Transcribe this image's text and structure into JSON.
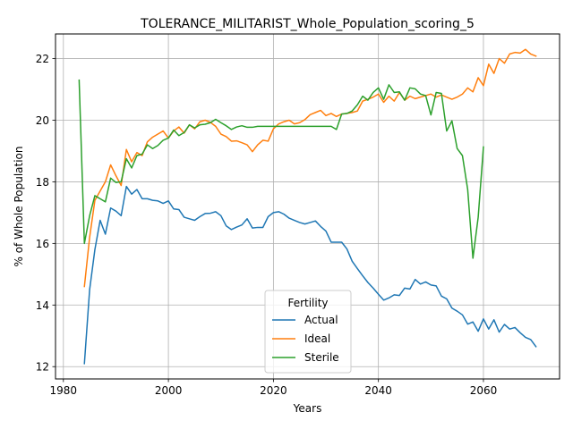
{
  "chart_data": {
    "type": "line",
    "title": "TOLERANCE_MILITARIST_Whole_Population_scoring_5",
    "xlabel": "Years",
    "ylabel": "% of Whole Population",
    "xlim": [
      1978.5,
      2074.5
    ],
    "ylim": [
      11.6,
      22.8
    ],
    "xticks": [
      1980,
      2000,
      2020,
      2040,
      2060
    ],
    "yticks": [
      12,
      14,
      16,
      18,
      20,
      22
    ],
    "grid": true,
    "legend": {
      "title": "Fertility",
      "position": "lower-center"
    },
    "series": [
      {
        "name": "Actual",
        "color": "#1f77b4",
        "x": [
          1984,
          1985,
          1986,
          1987,
          1988,
          1989,
          1990,
          1991,
          1992,
          1993,
          1994,
          1995,
          1996,
          1997,
          1998,
          1999,
          2000,
          2001,
          2002,
          2003,
          2004,
          2005,
          2006,
          2007,
          2008,
          2009,
          2010,
          2011,
          2012,
          2013,
          2014,
          2015,
          2016,
          2017,
          2018,
          2019,
          2020,
          2021,
          2022,
          2023,
          2024,
          2025,
          2026,
          2027,
          2028,
          2029,
          2030,
          2031,
          2032,
          2033,
          2034,
          2035,
          2036,
          2037,
          2038,
          2039,
          2040,
          2041,
          2042,
          2043,
          2044,
          2045,
          2046,
          2047,
          2048,
          2049,
          2050,
          2051,
          2052,
          2053,
          2054,
          2055,
          2056,
          2057,
          2058,
          2059,
          2060,
          2061,
          2062,
          2063,
          2064,
          2065,
          2066,
          2067,
          2068,
          2069,
          2070
        ],
        "values": [
          12.1,
          14.5,
          15.8,
          16.75,
          16.3,
          17.15,
          17.05,
          16.9,
          17.85,
          17.6,
          17.75,
          17.45,
          17.45,
          17.4,
          17.38,
          17.3,
          17.38,
          17.12,
          17.1,
          16.85,
          16.8,
          16.75,
          16.87,
          16.97,
          16.98,
          17.03,
          16.9,
          16.57,
          16.45,
          16.53,
          16.6,
          16.8,
          16.5,
          16.52,
          16.52,
          16.87,
          17.0,
          17.03,
          16.95,
          16.82,
          16.75,
          16.68,
          16.63,
          16.68,
          16.73,
          16.55,
          16.4,
          16.04,
          16.04,
          16.04,
          15.82,
          15.42,
          15.18,
          14.95,
          14.73,
          14.55,
          14.35,
          14.16,
          14.23,
          14.33,
          14.31,
          14.55,
          14.52,
          14.83,
          14.68,
          14.75,
          14.65,
          14.62,
          14.29,
          14.2,
          13.9,
          13.8,
          13.68,
          13.38,
          13.45,
          13.15,
          13.55,
          13.22,
          13.52,
          13.12,
          13.37,
          13.22,
          13.27,
          13.1,
          12.95,
          12.88,
          12.65
        ]
      },
      {
        "name": "Ideal",
        "color": "#ff7f0e",
        "x": [
          1984,
          1985,
          1986,
          1987,
          1988,
          1989,
          1990,
          1991,
          1992,
          1993,
          1994,
          1995,
          1996,
          1997,
          1998,
          1999,
          2000,
          2001,
          2002,
          2003,
          2004,
          2005,
          2006,
          2007,
          2008,
          2009,
          2010,
          2011,
          2012,
          2013,
          2014,
          2015,
          2016,
          2017,
          2018,
          2019,
          2020,
          2021,
          2022,
          2023,
          2024,
          2025,
          2026,
          2027,
          2028,
          2029,
          2030,
          2031,
          2032,
          2033,
          2034,
          2035,
          2036,
          2037,
          2038,
          2039,
          2040,
          2041,
          2042,
          2043,
          2044,
          2045,
          2046,
          2047,
          2048,
          2049,
          2050,
          2051,
          2052,
          2053,
          2054,
          2055,
          2056,
          2057,
          2058,
          2059,
          2060,
          2061,
          2062,
          2063,
          2064,
          2065,
          2066,
          2067,
          2068,
          2069,
          2070
        ],
        "values": [
          14.6,
          16.2,
          17.4,
          17.7,
          18.0,
          18.55,
          18.2,
          17.88,
          19.05,
          18.65,
          18.95,
          18.85,
          19.3,
          19.45,
          19.55,
          19.65,
          19.42,
          19.65,
          19.78,
          19.58,
          19.85,
          19.72,
          19.95,
          20.0,
          19.93,
          19.8,
          19.55,
          19.47,
          19.32,
          19.33,
          19.27,
          19.2,
          18.98,
          19.2,
          19.35,
          19.32,
          19.72,
          19.88,
          19.95,
          20.0,
          19.88,
          19.92,
          20.02,
          20.18,
          20.25,
          20.32,
          20.15,
          20.22,
          20.12,
          20.2,
          20.22,
          20.25,
          20.3,
          20.62,
          20.68,
          20.75,
          20.85,
          20.58,
          20.78,
          20.62,
          20.9,
          20.65,
          20.78,
          20.7,
          20.75,
          20.8,
          20.85,
          20.75,
          20.82,
          20.75,
          20.68,
          20.75,
          20.85,
          21.05,
          20.92,
          21.38,
          21.12,
          21.82,
          21.52,
          22.0,
          21.85,
          22.15,
          22.2,
          22.18,
          22.3,
          22.15,
          22.08
        ]
      },
      {
        "name": "Sterile",
        "color": "#2ca02c",
        "x": [
          1983,
          1984,
          1985,
          1986,
          1987,
          1988,
          1989,
          1990,
          1991,
          1992,
          1993,
          1994,
          1995,
          1996,
          1997,
          1998,
          1999,
          2000,
          2001,
          2002,
          2003,
          2004,
          2005,
          2006,
          2007,
          2008,
          2009,
          2010,
          2011,
          2012,
          2013,
          2014,
          2015,
          2016,
          2017,
          2018,
          2019,
          2020,
          2021,
          2022,
          2023,
          2024,
          2025,
          2026,
          2027,
          2028,
          2029,
          2030,
          2031,
          2032,
          2033,
          2034,
          2035,
          2036,
          2037,
          2038,
          2039,
          2040,
          2041,
          2042,
          2043,
          2044,
          2045,
          2046,
          2047,
          2048,
          2049,
          2050,
          2051,
          2052,
          2053,
          2054,
          2055,
          2056,
          2057,
          2058,
          2059,
          2060
        ],
        "values": [
          21.3,
          16.0,
          16.9,
          17.55,
          17.45,
          17.35,
          18.12,
          17.98,
          18.0,
          18.75,
          18.45,
          18.85,
          18.9,
          19.2,
          19.08,
          19.18,
          19.35,
          19.42,
          19.68,
          19.5,
          19.6,
          19.85,
          19.75,
          19.85,
          19.87,
          19.92,
          20.03,
          19.92,
          19.82,
          19.7,
          19.78,
          19.82,
          19.77,
          19.77,
          19.8,
          19.8,
          19.8,
          19.8,
          19.8,
          19.8,
          19.8,
          19.8,
          19.8,
          19.8,
          19.8,
          19.8,
          19.8,
          19.8,
          19.8,
          19.7,
          20.2,
          20.22,
          20.3,
          20.5,
          20.78,
          20.65,
          20.9,
          21.05,
          20.68,
          21.15,
          20.9,
          20.92,
          20.65,
          21.05,
          21.02,
          20.85,
          20.8,
          20.17,
          20.9,
          20.87,
          19.65,
          19.98,
          19.08,
          18.85,
          17.75,
          15.52,
          16.85,
          19.13
        ]
      }
    ]
  }
}
